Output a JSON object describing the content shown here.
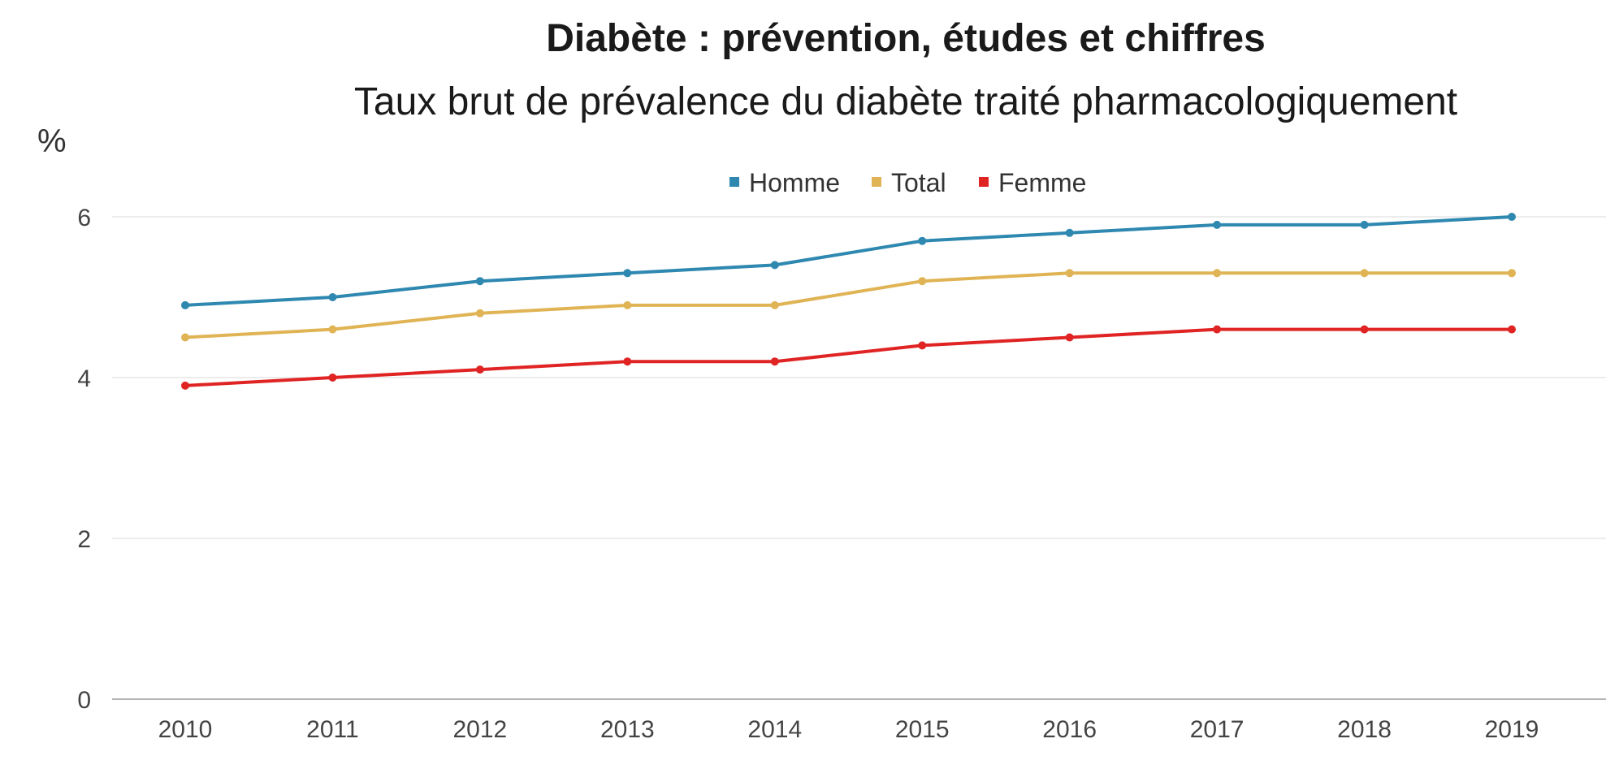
{
  "title": "Diabète : prévention, études et chiffres",
  "subtitle": "Taux brut de prévalence du diabète traité pharmacologiquement",
  "unit_label": "%",
  "chart_data": {
    "type": "line",
    "title": "Diabète : prévention, études et chiffres",
    "subtitle": "Taux brut de prévalence du diabète traité pharmacologiquement",
    "xlabel": "",
    "ylabel": "%",
    "ylim": [
      0,
      6
    ],
    "yticks": [
      0,
      2,
      4,
      6
    ],
    "grid": true,
    "legend_position": "top-center",
    "categories": [
      "2010",
      "2011",
      "2012",
      "2013",
      "2014",
      "2015",
      "2016",
      "2017",
      "2018",
      "2019"
    ],
    "series": [
      {
        "name": "Homme",
        "color": "#2e88b0",
        "values": [
          4.9,
          5.0,
          5.2,
          5.3,
          5.4,
          5.7,
          5.8,
          5.9,
          5.9,
          6.0
        ]
      },
      {
        "name": "Total",
        "color": "#e0b455",
        "values": [
          4.5,
          4.6,
          4.8,
          4.9,
          4.9,
          5.2,
          5.3,
          5.3,
          5.3,
          5.3
        ]
      },
      {
        "name": "Femme",
        "color": "#e02424",
        "values": [
          3.9,
          4.0,
          4.1,
          4.2,
          4.2,
          4.4,
          4.5,
          4.6,
          4.6,
          4.6
        ]
      }
    ]
  }
}
